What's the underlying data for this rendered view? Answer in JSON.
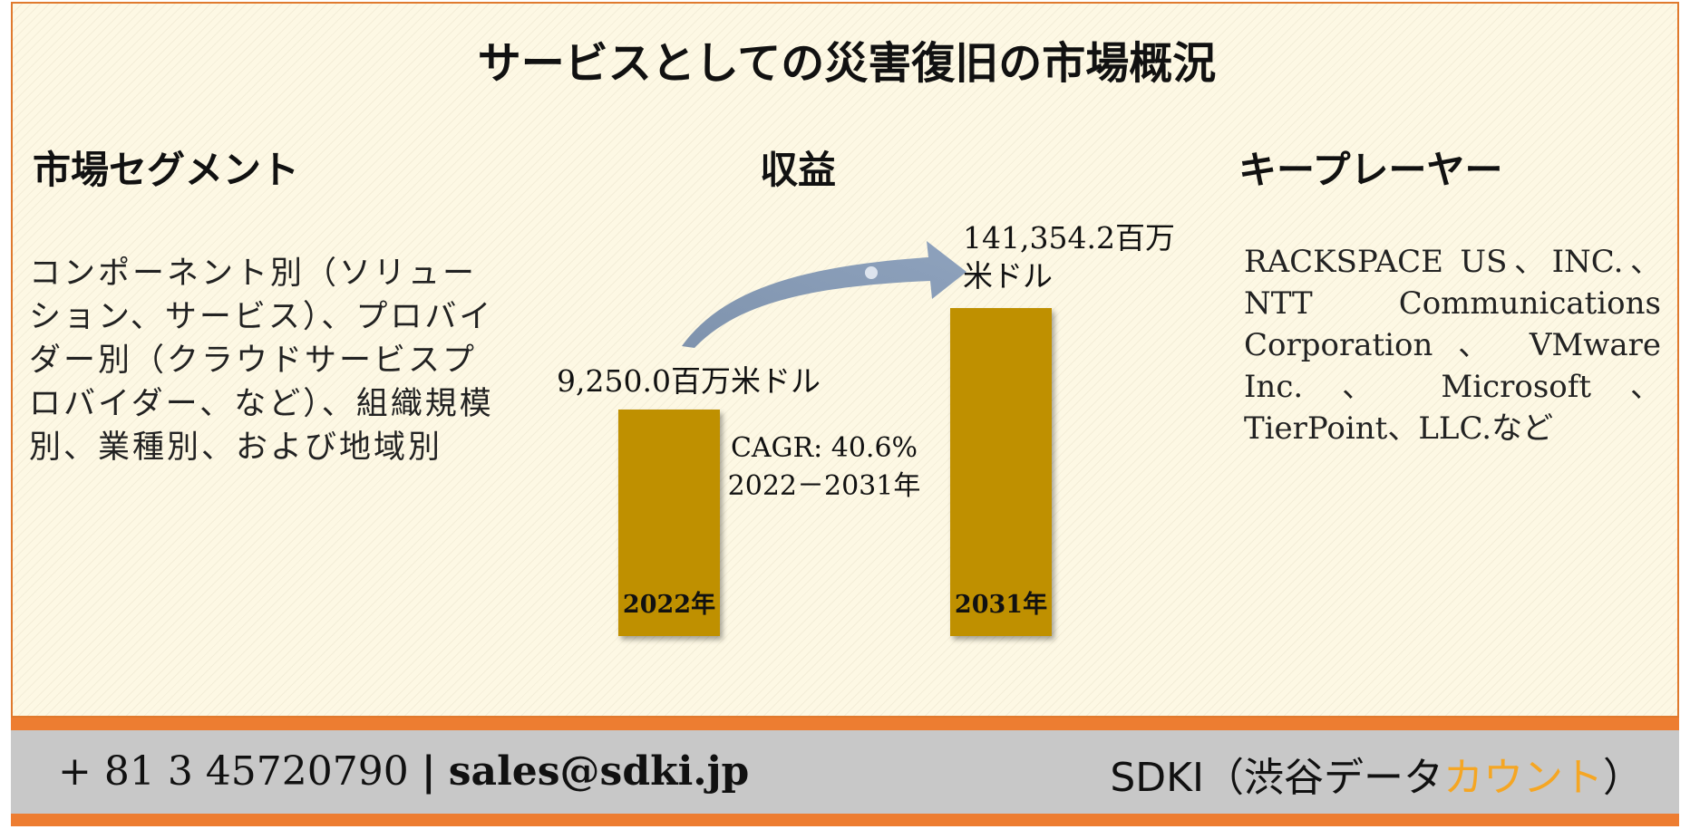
{
  "title": "サービスとしての災害復旧の市場概況",
  "segments": {
    "heading": "市場セグメント",
    "text": "コンポーネント別（ソリューション、サービス）、プロバイダー別（クラウドサービスプロバイダー、など）、組織規模別、業種別、および地域別"
  },
  "revenue": {
    "heading": "収益"
  },
  "players": {
    "heading": "キープレーヤー",
    "text": "RACKSPACE US、INC.、NTT Communications Corporation 、 VMware Inc. 、 Microsoft 、 TierPoint、LLC.など"
  },
  "chart_data": {
    "type": "bar",
    "categories": [
      "2022年",
      "2031年"
    ],
    "values": [
      9250.0,
      141354.2
    ],
    "value_labels": [
      "9,250.0百万米ドル",
      "141,354.2百万米ドル"
    ],
    "cagr_label": "CAGR: 40.6%",
    "period_label": "2022－2031年",
    "bar_color": "#bf9000",
    "arrow_color": "#8497b0"
  },
  "footer": {
    "phone": "+ 81 3 45720790",
    "separator": "|",
    "email": "sales@sdki.jp",
    "brand_prefix": "SDKI（渋谷データ",
    "brand_accent": "カウント",
    "brand_suffix": "）",
    "accent_color": "#f5a623",
    "strip_color": "#ed7d31",
    "background_color": "#c8c8c8"
  }
}
